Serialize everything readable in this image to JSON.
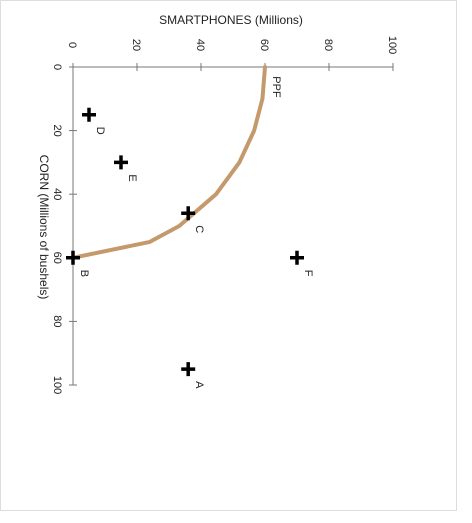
{
  "chart_data": {
    "type": "scatter",
    "xlabel": "SMARTPHONES (Millions)",
    "ylabel": "CORN (Millions of bushels)",
    "xlim": [
      0,
      100
    ],
    "xticks": [
      0,
      20,
      40,
      60,
      80,
      100
    ],
    "ylim": [
      0,
      100
    ],
    "yticks": [
      0,
      20,
      40,
      60,
      80,
      100
    ],
    "points": [
      {
        "label": "D",
        "x": 5,
        "y": 15
      },
      {
        "label": "E",
        "x": 15,
        "y": 30
      },
      {
        "label": "C",
        "x": 36,
        "y": 46
      },
      {
        "label": "B",
        "x": 0,
        "y": 60
      },
      {
        "label": "F",
        "x": 70,
        "y": 60
      },
      {
        "label": "A",
        "x": 36,
        "y": 95
      }
    ],
    "curve": {
      "name": "PPF",
      "color": "#c49a6c",
      "x": [
        60,
        59.2,
        56.6,
        52,
        44.7,
        33.2,
        24,
        0
      ],
      "y": [
        0,
        10,
        20,
        30,
        40,
        50,
        55,
        60
      ]
    }
  }
}
